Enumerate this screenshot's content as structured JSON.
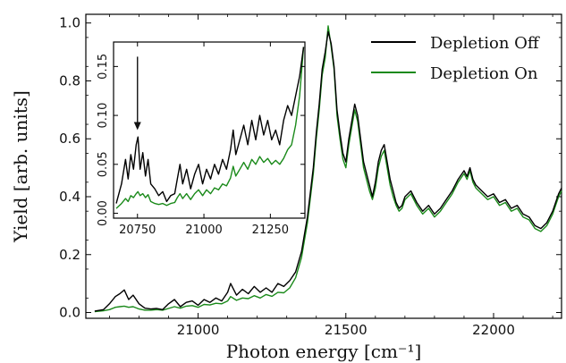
{
  "chart_data": [
    {
      "type": "line",
      "xlabel": "Photon energy [cm⁻¹]",
      "ylabel": "Yield [arb. units]",
      "xlim": [
        20620,
        22230
      ],
      "ylim": [
        -0.02,
        1.03
      ],
      "xticks": [
        21000,
        21500,
        22000
      ],
      "yticks": [
        0.0,
        0.2,
        0.4,
        0.6,
        0.8,
        1.0
      ],
      "xtick_labels": [
        "21000",
        "21500",
        "22000"
      ],
      "ytick_labels": [
        "0.0",
        "0.2",
        "0.4",
        "0.6",
        "0.8",
        "1.0"
      ],
      "legend_position": "top-right",
      "series": [
        {
          "name": "Depletion Off",
          "color": "#000000",
          "x": [
            20650,
            20680,
            20700,
            20720,
            20735,
            20750,
            20765,
            20780,
            20800,
            20820,
            20840,
            20860,
            20880,
            20900,
            20920,
            20940,
            20960,
            20980,
            21000,
            21020,
            21040,
            21060,
            21080,
            21100,
            21110,
            21130,
            21150,
            21170,
            21190,
            21210,
            21230,
            21250,
            21270,
            21290,
            21310,
            21330,
            21350,
            21370,
            21390,
            21400,
            21410,
            21420,
            21430,
            21440,
            21450,
            21460,
            21470,
            21480,
            21490,
            21500,
            21510,
            21520,
            21530,
            21540,
            21550,
            21560,
            21570,
            21580,
            21590,
            21600,
            21610,
            21620,
            21630,
            21640,
            21650,
            21660,
            21670,
            21680,
            21690,
            21700,
            21720,
            21740,
            21760,
            21780,
            21800,
            21820,
            21840,
            21860,
            21880,
            21900,
            21910,
            21920,
            21930,
            21940,
            21960,
            21980,
            22000,
            22020,
            22040,
            22060,
            22080,
            22100,
            22120,
            22140,
            22160,
            22180,
            22200,
            22210,
            22220,
            22230
          ],
          "y": [
            0.005,
            0.01,
            0.03,
            0.055,
            0.065,
            0.078,
            0.045,
            0.06,
            0.03,
            0.015,
            0.012,
            0.014,
            0.01,
            0.03,
            0.045,
            0.02,
            0.035,
            0.04,
            0.025,
            0.045,
            0.035,
            0.05,
            0.04,
            0.07,
            0.1,
            0.06,
            0.08,
            0.065,
            0.09,
            0.07,
            0.085,
            0.07,
            0.1,
            0.09,
            0.11,
            0.14,
            0.21,
            0.33,
            0.5,
            0.62,
            0.72,
            0.84,
            0.9,
            0.97,
            0.93,
            0.85,
            0.7,
            0.62,
            0.55,
            0.52,
            0.6,
            0.66,
            0.72,
            0.68,
            0.6,
            0.52,
            0.48,
            0.44,
            0.4,
            0.45,
            0.52,
            0.56,
            0.58,
            0.52,
            0.46,
            0.42,
            0.38,
            0.36,
            0.37,
            0.4,
            0.42,
            0.38,
            0.35,
            0.37,
            0.34,
            0.36,
            0.39,
            0.42,
            0.46,
            0.49,
            0.47,
            0.5,
            0.46,
            0.44,
            0.42,
            0.4,
            0.41,
            0.38,
            0.39,
            0.36,
            0.37,
            0.34,
            0.33,
            0.3,
            0.29,
            0.31,
            0.35,
            0.38,
            0.41,
            0.43
          ]
        },
        {
          "name": "Depletion On",
          "color": "#1a8a1a",
          "x": [
            20650,
            20680,
            20700,
            20720,
            20735,
            20750,
            20765,
            20780,
            20800,
            20820,
            20840,
            20860,
            20880,
            20900,
            20920,
            20940,
            20960,
            20980,
            21000,
            21020,
            21040,
            21060,
            21080,
            21100,
            21110,
            21130,
            21150,
            21170,
            21190,
            21210,
            21230,
            21250,
            21270,
            21290,
            21310,
            21330,
            21350,
            21370,
            21390,
            21400,
            21410,
            21420,
            21430,
            21440,
            21450,
            21460,
            21470,
            21480,
            21490,
            21500,
            21510,
            21520,
            21530,
            21540,
            21550,
            21560,
            21570,
            21580,
            21590,
            21600,
            21610,
            21620,
            21630,
            21640,
            21650,
            21660,
            21670,
            21680,
            21690,
            21700,
            21720,
            21740,
            21760,
            21780,
            21800,
            21820,
            21840,
            21860,
            21880,
            21900,
            21910,
            21920,
            21930,
            21940,
            21960,
            21980,
            22000,
            22020,
            22040,
            22060,
            22080,
            22100,
            22120,
            22140,
            22160,
            22180,
            22200,
            22210,
            22220,
            22230
          ],
          "y": [
            0.003,
            0.006,
            0.01,
            0.018,
            0.02,
            0.022,
            0.018,
            0.02,
            0.012,
            0.008,
            0.008,
            0.01,
            0.008,
            0.014,
            0.02,
            0.015,
            0.022,
            0.024,
            0.018,
            0.028,
            0.026,
            0.032,
            0.03,
            0.04,
            0.055,
            0.042,
            0.05,
            0.048,
            0.058,
            0.05,
            0.062,
            0.056,
            0.07,
            0.068,
            0.085,
            0.12,
            0.19,
            0.31,
            0.48,
            0.6,
            0.7,
            0.82,
            0.88,
            0.99,
            0.92,
            0.84,
            0.68,
            0.6,
            0.53,
            0.5,
            0.58,
            0.64,
            0.7,
            0.66,
            0.58,
            0.5,
            0.46,
            0.42,
            0.39,
            0.43,
            0.5,
            0.54,
            0.56,
            0.5,
            0.44,
            0.4,
            0.37,
            0.35,
            0.36,
            0.39,
            0.41,
            0.37,
            0.34,
            0.36,
            0.33,
            0.35,
            0.38,
            0.41,
            0.45,
            0.48,
            0.46,
            0.49,
            0.45,
            0.43,
            0.41,
            0.39,
            0.4,
            0.37,
            0.38,
            0.35,
            0.36,
            0.33,
            0.32,
            0.29,
            0.28,
            0.3,
            0.34,
            0.37,
            0.4,
            0.42
          ]
        }
      ]
    },
    {
      "type": "line",
      "xlim": [
        20660,
        21380
      ],
      "ylim": [
        -0.005,
        0.175
      ],
      "xticks": [
        20750,
        21000,
        21250
      ],
      "yticks": [
        0.0,
        0.05,
        0.1,
        0.15
      ],
      "xtick_labels": [
        "20750",
        "21000",
        "21250"
      ],
      "ytick_labels": [
        "0.00",
        "0.05",
        "0.10",
        "0.15"
      ],
      "annotation": {
        "type": "arrow",
        "x": 20750,
        "y_from": 0.16,
        "y_to": 0.085
      },
      "series": [
        {
          "name": "Depletion Off",
          "color": "#000000",
          "x": [
            20670,
            20690,
            20705,
            20715,
            20725,
            20735,
            20745,
            20752,
            20760,
            20770,
            20780,
            20790,
            20800,
            20815,
            20830,
            20845,
            20860,
            20875,
            20890,
            20900,
            20910,
            20920,
            20935,
            20950,
            20965,
            20980,
            20995,
            21010,
            21025,
            21040,
            21055,
            21070,
            21085,
            21100,
            21110,
            21120,
            21135,
            21150,
            21165,
            21180,
            21195,
            21210,
            21225,
            21240,
            21255,
            21270,
            21285,
            21300,
            21315,
            21330,
            21345,
            21360,
            21375
          ],
          "y": [
            0.01,
            0.03,
            0.055,
            0.035,
            0.06,
            0.045,
            0.07,
            0.078,
            0.045,
            0.062,
            0.038,
            0.055,
            0.03,
            0.025,
            0.018,
            0.022,
            0.012,
            0.018,
            0.02,
            0.035,
            0.05,
            0.03,
            0.045,
            0.025,
            0.04,
            0.05,
            0.03,
            0.045,
            0.035,
            0.05,
            0.04,
            0.055,
            0.045,
            0.065,
            0.085,
            0.06,
            0.075,
            0.09,
            0.07,
            0.095,
            0.075,
            0.1,
            0.08,
            0.095,
            0.075,
            0.085,
            0.07,
            0.095,
            0.11,
            0.1,
            0.12,
            0.14,
            0.17
          ]
        },
        {
          "name": "Depletion On",
          "color": "#1a8a1a",
          "x": [
            20670,
            20690,
            20705,
            20715,
            20725,
            20735,
            20745,
            20752,
            20760,
            20770,
            20780,
            20790,
            20800,
            20815,
            20830,
            20845,
            20860,
            20875,
            20890,
            20900,
            20910,
            20920,
            20935,
            20950,
            20965,
            20980,
            20995,
            21010,
            21025,
            21040,
            21055,
            21070,
            21085,
            21100,
            21110,
            21120,
            21135,
            21150,
            21165,
            21180,
            21195,
            21210,
            21225,
            21240,
            21255,
            21270,
            21285,
            21300,
            21315,
            21330,
            21345,
            21360,
            21375
          ],
          "y": [
            0.005,
            0.01,
            0.015,
            0.012,
            0.018,
            0.016,
            0.02,
            0.022,
            0.018,
            0.02,
            0.016,
            0.019,
            0.012,
            0.01,
            0.009,
            0.01,
            0.008,
            0.01,
            0.011,
            0.016,
            0.02,
            0.015,
            0.02,
            0.014,
            0.02,
            0.024,
            0.018,
            0.024,
            0.02,
            0.026,
            0.024,
            0.03,
            0.028,
            0.036,
            0.048,
            0.038,
            0.045,
            0.052,
            0.045,
            0.055,
            0.05,
            0.058,
            0.052,
            0.056,
            0.05,
            0.054,
            0.05,
            0.056,
            0.065,
            0.07,
            0.09,
            0.12,
            0.17
          ]
        }
      ]
    }
  ]
}
